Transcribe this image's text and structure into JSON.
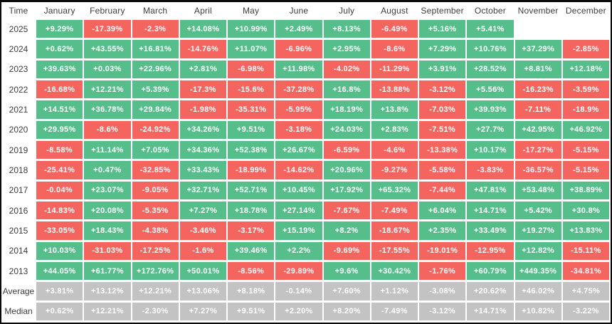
{
  "colors": {
    "positive": "#55BE8B",
    "negative": "#F5655F",
    "summary": "#C3C3C3",
    "header_text": "#3D3D3D",
    "cell_text": "#FFFFFF",
    "background": "#FFFFFF",
    "frame": "#0A0A0A"
  },
  "table": {
    "time_header": "Time",
    "columns": [
      "January",
      "February",
      "March",
      "April",
      "May",
      "June",
      "July",
      "August",
      "September",
      "October",
      "November",
      "December"
    ],
    "rows": [
      {
        "label": "2025",
        "type": "year",
        "cells": [
          "+9.29%",
          "-17.39%",
          "-2.3%",
          "+14.08%",
          "+10.99%",
          "+2.49%",
          "+8.13%",
          "-6.49%",
          "+5.16%",
          "+5.41%",
          null,
          null
        ]
      },
      {
        "label": "2024",
        "type": "year",
        "cells": [
          "+0.62%",
          "+43.55%",
          "+16.81%",
          "-14.76%",
          "+11.07%",
          "-6.96%",
          "+2.95%",
          "-8.6%",
          "+7.29%",
          "+10.76%",
          "+37.29%",
          "-2.85%"
        ]
      },
      {
        "label": "2023",
        "type": "year",
        "cells": [
          "+39.63%",
          "+0.03%",
          "+22.96%",
          "+2.81%",
          "-6.98%",
          "+11.98%",
          "-4.02%",
          "-11.29%",
          "+3.91%",
          "+28.52%",
          "+8.81%",
          "+12.18%"
        ]
      },
      {
        "label": "2022",
        "type": "year",
        "cells": [
          "-16.68%",
          "+12.21%",
          "+5.39%",
          "-17.3%",
          "-15.6%",
          "-37.28%",
          "+16.8%",
          "-13.88%",
          "-3.12%",
          "+5.56%",
          "-16.23%",
          "-3.59%"
        ]
      },
      {
        "label": "2021",
        "type": "year",
        "cells": [
          "+14.51%",
          "+36.78%",
          "+29.84%",
          "-1.98%",
          "-35.31%",
          "-5.95%",
          "+18.19%",
          "+13.8%",
          "-7.03%",
          "+39.93%",
          "-7.11%",
          "-18.9%"
        ]
      },
      {
        "label": "2020",
        "type": "year",
        "cells": [
          "+29.95%",
          "-8.6%",
          "-24.92%",
          "+34.26%",
          "+9.51%",
          "-3.18%",
          "+24.03%",
          "+2.83%",
          "-7.51%",
          "+27.7%",
          "+42.95%",
          "+46.92%"
        ]
      },
      {
        "label": "2019",
        "type": "year",
        "cells": [
          "-8.58%",
          "+11.14%",
          "+7.05%",
          "+34.36%",
          "+52.38%",
          "+26.67%",
          "-6.59%",
          "-4.6%",
          "-13.38%",
          "+10.17%",
          "-17.27%",
          "-5.15%"
        ]
      },
      {
        "label": "2018",
        "type": "year",
        "cells": [
          "-25.41%",
          "+0.47%",
          "-32.85%",
          "+33.43%",
          "-18.99%",
          "-14.62%",
          "+20.96%",
          "-9.27%",
          "-5.58%",
          "-3.83%",
          "-36.57%",
          "-5.15%"
        ]
      },
      {
        "label": "2017",
        "type": "year",
        "cells": [
          "-0.04%",
          "+23.07%",
          "-9.05%",
          "+32.71%",
          "+52.71%",
          "+10.45%",
          "+17.92%",
          "+65.32%",
          "-7.44%",
          "+47.81%",
          "+53.48%",
          "+38.89%"
        ]
      },
      {
        "label": "2016",
        "type": "year",
        "cells": [
          "-14.83%",
          "+20.08%",
          "-5.35%",
          "+7.27%",
          "+18.78%",
          "+27.14%",
          "-7.67%",
          "-7.49%",
          "+6.04%",
          "+14.71%",
          "+5.42%",
          "+30.8%"
        ]
      },
      {
        "label": "2015",
        "type": "year",
        "cells": [
          "-33.05%",
          "+18.43%",
          "-4.38%",
          "-3.46%",
          "-3.17%",
          "+15.19%",
          "+8.2%",
          "-18.67%",
          "+2.35%",
          "+33.49%",
          "+19.27%",
          "+13.83%"
        ]
      },
      {
        "label": "2014",
        "type": "year",
        "cells": [
          "+10.03%",
          "-31.03%",
          "-17.25%",
          "-1.6%",
          "+39.46%",
          "+2.2%",
          "-9.69%",
          "-17.55%",
          "-19.01%",
          "-12.95%",
          "+12.82%",
          "-15.11%"
        ]
      },
      {
        "label": "2013",
        "type": "year",
        "cells": [
          "+44.05%",
          "+61.77%",
          "+172.76%",
          "+50.01%",
          "-8.56%",
          "-29.89%",
          "+9.6%",
          "+30.42%",
          "-1.76%",
          "+60.79%",
          "+449.35%",
          "-34.81%"
        ]
      },
      {
        "label": "Average",
        "type": "summary",
        "cells": [
          "+3.81%",
          "+13.12%",
          "+12.21%",
          "+13.06%",
          "+8.18%",
          "-0.14%",
          "+7.60%",
          "+1.12%",
          "-3.08%",
          "+20.62%",
          "+46.02%",
          "+4.75%"
        ]
      },
      {
        "label": "Median",
        "type": "summary",
        "cells": [
          "+0.62%",
          "+12.21%",
          "-2.30%",
          "+7.27%",
          "+9.51%",
          "+2.20%",
          "+8.20%",
          "-7.49%",
          "-3.12%",
          "+14.71%",
          "+10.82%",
          "-3.22%"
        ]
      }
    ]
  },
  "chart_data": {
    "type": "heatmap",
    "title": "",
    "unit": "percent monthly return",
    "columns": [
      "January",
      "February",
      "March",
      "April",
      "May",
      "June",
      "July",
      "August",
      "September",
      "October",
      "November",
      "December"
    ],
    "rows": [
      "2025",
      "2024",
      "2023",
      "2022",
      "2021",
      "2020",
      "2019",
      "2018",
      "2017",
      "2016",
      "2015",
      "2014",
      "2013",
      "Average",
      "Median"
    ],
    "values": [
      [
        9.29,
        -17.39,
        -2.3,
        14.08,
        10.99,
        2.49,
        8.13,
        -6.49,
        5.16,
        5.41,
        null,
        null
      ],
      [
        0.62,
        43.55,
        16.81,
        -14.76,
        11.07,
        -6.96,
        2.95,
        -8.6,
        7.29,
        10.76,
        37.29,
        -2.85
      ],
      [
        39.63,
        0.03,
        22.96,
        2.81,
        -6.98,
        11.98,
        -4.02,
        -11.29,
        3.91,
        28.52,
        8.81,
        12.18
      ],
      [
        -16.68,
        12.21,
        5.39,
        -17.3,
        -15.6,
        -37.28,
        16.8,
        -13.88,
        -3.12,
        5.56,
        -16.23,
        -3.59
      ],
      [
        14.51,
        36.78,
        29.84,
        -1.98,
        -35.31,
        -5.95,
        18.19,
        13.8,
        -7.03,
        39.93,
        -7.11,
        -18.9
      ],
      [
        29.95,
        -8.6,
        -24.92,
        34.26,
        9.51,
        -3.18,
        24.03,
        2.83,
        -7.51,
        27.7,
        42.95,
        46.92
      ],
      [
        -8.58,
        11.14,
        7.05,
        34.36,
        52.38,
        26.67,
        -6.59,
        -4.6,
        -13.38,
        10.17,
        -17.27,
        -5.15
      ],
      [
        -25.41,
        0.47,
        -32.85,
        33.43,
        -18.99,
        -14.62,
        20.96,
        -9.27,
        -5.58,
        -3.83,
        -36.57,
        -5.15
      ],
      [
        -0.04,
        23.07,
        -9.05,
        32.71,
        52.71,
        10.45,
        17.92,
        65.32,
        -7.44,
        47.81,
        53.48,
        38.89
      ],
      [
        -14.83,
        20.08,
        -5.35,
        7.27,
        18.78,
        27.14,
        -7.67,
        -7.49,
        6.04,
        14.71,
        5.42,
        30.8
      ],
      [
        -33.05,
        18.43,
        -4.38,
        -3.46,
        -3.17,
        15.19,
        8.2,
        -18.67,
        2.35,
        33.49,
        19.27,
        13.83
      ],
      [
        10.03,
        -31.03,
        -17.25,
        -1.6,
        39.46,
        2.2,
        -9.69,
        -17.55,
        -19.01,
        -12.95,
        12.82,
        -15.11
      ],
      [
        44.05,
        61.77,
        172.76,
        50.01,
        -8.56,
        -29.89,
        9.6,
        30.42,
        -1.76,
        60.79,
        449.35,
        -34.81
      ],
      [
        3.81,
        13.12,
        12.21,
        13.06,
        8.18,
        -0.14,
        7.6,
        1.12,
        -3.08,
        20.62,
        46.02,
        4.75
      ],
      [
        0.62,
        12.21,
        -2.3,
        7.27,
        9.51,
        2.2,
        8.2,
        -7.49,
        -3.12,
        14.71,
        10.82,
        -3.22
      ]
    ],
    "legend": "green = positive month, red = negative month, gray = summary statistic",
    "grid": false
  }
}
